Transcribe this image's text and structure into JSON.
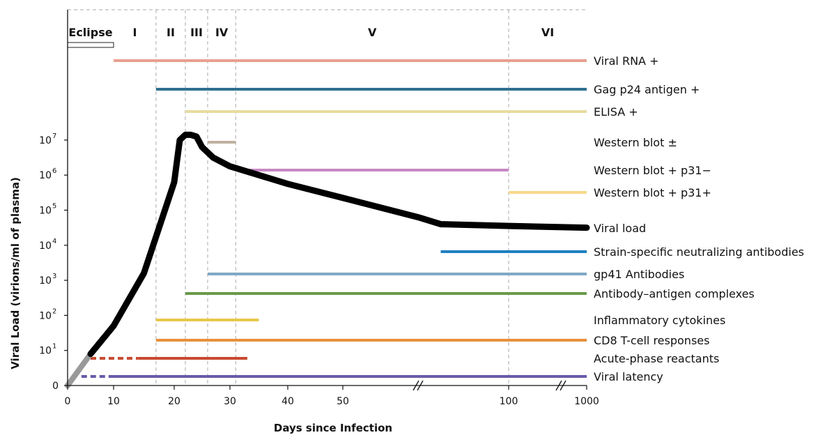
{
  "chart_data": {
    "type": "line",
    "title": "",
    "xlabel": "Days since Infection",
    "ylabel": "Viral Load (virions/ml of plasma)",
    "x_tick_labels": [
      "0",
      "10",
      "20",
      "30",
      "40",
      "50",
      "100",
      "1000"
    ],
    "y_tick_labels": [
      "0",
      "10",
      "10",
      "10",
      "10",
      "10",
      "10",
      "10"
    ],
    "y_tick_exponents": [
      "",
      "1",
      "2",
      "3",
      "4",
      "5",
      "6",
      "7"
    ],
    "eclipse_label": "Eclipse",
    "stages": [
      {
        "label": "I",
        "start": 10,
        "end": 17
      },
      {
        "label": "II",
        "start": 17,
        "end": 22
      },
      {
        "label": "III",
        "start": 22,
        "end": 26
      },
      {
        "label": "IV",
        "start": 26,
        "end": 31
      },
      {
        "label": "V",
        "start": 31,
        "end": 100
      },
      {
        "label": "VI",
        "start": 100,
        "end": 1000
      }
    ],
    "stage_boundaries": [
      17,
      22,
      26,
      31,
      100
    ],
    "eclipse_range": [
      0,
      10
    ],
    "viral_load": {
      "name": "Viral load",
      "x": [
        0,
        5,
        10,
        15,
        20,
        21,
        22,
        23,
        24,
        25,
        27,
        30,
        35,
        40,
        50,
        60,
        70,
        100,
        1000
      ],
      "log10_y": [
        0,
        0.9,
        1.7,
        3.2,
        5.8,
        7.0,
        7.15,
        7.15,
        7.1,
        6.8,
        6.5,
        6.25,
        6.0,
        5.75,
        5.35,
        4.8,
        4.6,
        4.55,
        4.5
      ]
    },
    "markers": [
      {
        "name": "Viral RNA +",
        "start": 10,
        "end": 1000,
        "color": "#e8a090"
      },
      {
        "name": "Gag p24 antigen +",
        "start": 17,
        "end": 1000,
        "color": "#2f6f8f"
      },
      {
        "name": "ELISA +",
        "start": 22,
        "end": 1000,
        "color": "#e6dca0"
      },
      {
        "name": "Western blot ±",
        "start": 26,
        "end": 31,
        "color": "#bfb0a0"
      },
      {
        "name": "Western blot + p31−",
        "start": 31,
        "end": 100,
        "color": "#c788c4"
      },
      {
        "name": "Western blot + p31+",
        "start": 100,
        "end": 1000,
        "color": "#f8d88a"
      },
      {
        "name": "Strain-specific neutralizing antibodies",
        "start": 70,
        "end": 1000,
        "color": "#1e7fc0"
      },
      {
        "name": "gp41 Antibodies",
        "start": 26,
        "end": 1000,
        "color": "#80a8c4"
      },
      {
        "name": "Antibody–antigen complexes",
        "start": 22,
        "end": 1000,
        "color": "#6a9a4a"
      },
      {
        "name": "Inflammatory cytokines",
        "start": 17,
        "end": 35,
        "color": "#e8c84a"
      },
      {
        "name": "CD8 T-cell responses",
        "start": 17,
        "end": 1000,
        "color": "#e8903a"
      },
      {
        "name": "Acute-phase reactants",
        "start": 14,
        "end": 33,
        "dashed_start": 5,
        "color": "#c84a32"
      },
      {
        "name": "Viral latency",
        "start": 10,
        "end": 1000,
        "dashed_start": 3,
        "color": "#6a5aaa"
      }
    ]
  }
}
